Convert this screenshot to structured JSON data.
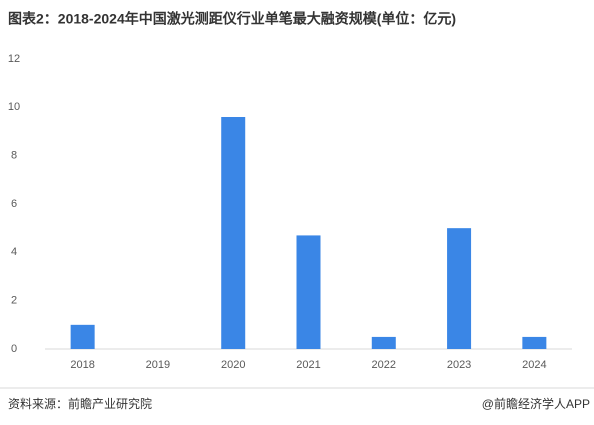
{
  "chart_data": {
    "type": "bar",
    "title": "图表2：2018-2024年中国激光测距仪行业单笔最大融资规模(单位：亿元)",
    "categories": [
      "2018",
      "2019",
      "2020",
      "2021",
      "2022",
      "2023",
      "2024"
    ],
    "values": [
      1,
      0,
      9.6,
      4.7,
      0.5,
      5,
      0.5
    ],
    "color": "#3a86e6",
    "ylim": [
      0,
      12
    ],
    "yticks": [
      0,
      2,
      4,
      6,
      8,
      10,
      12
    ],
    "grid": false,
    "source": "资料来源：前瞻产业研究院",
    "credit": "@前瞻经济学人APP"
  }
}
